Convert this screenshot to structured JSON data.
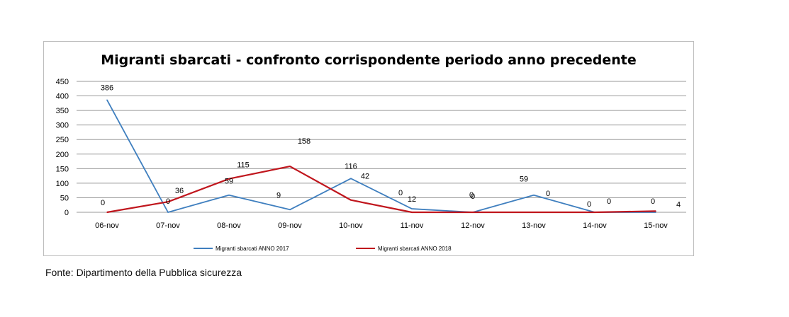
{
  "chart_data": {
    "type": "line",
    "title": "Migranti sbarcati - confronto corrispondente periodo anno precedente",
    "xlabel": "",
    "ylabel": "",
    "categories": [
      "06-nov",
      "07-nov",
      "08-nov",
      "09-nov",
      "10-nov",
      "11-nov",
      "12-nov",
      "13-nov",
      "14-nov",
      "15-nov"
    ],
    "ylim": [
      0,
      450
    ],
    "yticks": [
      0,
      50,
      100,
      150,
      200,
      250,
      300,
      350,
      400,
      450
    ],
    "grid": true,
    "legend_position": "bottom",
    "series": [
      {
        "name": "Migranti sbarcati ANNO 2017",
        "color": "#3f7fbf",
        "values": [
          386,
          0,
          59,
          9,
          116,
          12,
          0,
          59,
          0,
          0
        ]
      },
      {
        "name": "Migranti sbarcati ANNO 2018",
        "color": "#c0161d",
        "values": [
          0,
          36,
          115,
          158,
          42,
          0,
          0,
          0,
          0,
          4
        ]
      }
    ]
  },
  "source": "Fonte: Dipartimento della Pubblica sicurezza"
}
